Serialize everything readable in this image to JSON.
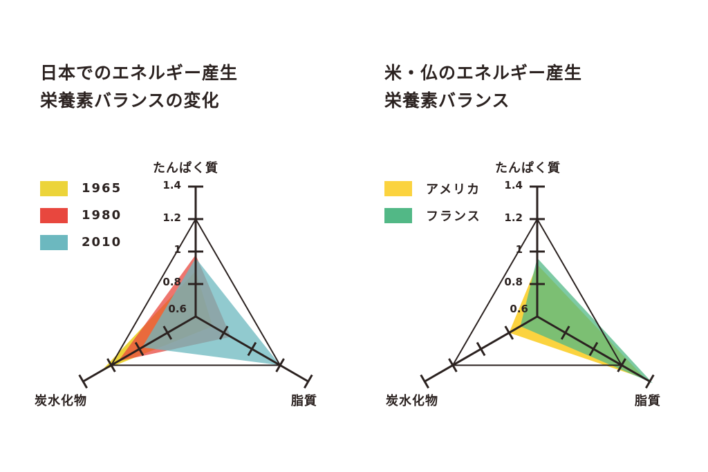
{
  "chart_data": [
    {
      "type": "radar",
      "title": "日本でのエネルギー産生栄養素バランスの変化",
      "title_lines": [
        "日本でのエネルギー産生",
        "栄養素バランスの変化"
      ],
      "axes": [
        "たんぱく質",
        "脂質",
        "炭水化物"
      ],
      "tick_labels": [
        "1.4",
        "1.2",
        "1",
        "0.8",
        "0.6"
      ],
      "rlim": [
        0.6,
        1.4
      ],
      "reference_triangle_value": 1.2,
      "legend_position": "left",
      "series": [
        {
          "name": "1965",
          "color": "#ecd43a",
          "values": {
            "protein": 0.88,
            "fat": 0.72,
            "carb": 1.27
          }
        },
        {
          "name": "1980",
          "color": "#e8473e",
          "values": {
            "protein": 0.98,
            "fat": 0.85,
            "carb": 1.15
          }
        },
        {
          "name": "2010",
          "color": "#6cb8bf",
          "values": {
            "protein": 0.96,
            "fat": 1.2,
            "carb": 0.98
          }
        }
      ]
    },
    {
      "type": "radar",
      "title": "米・仏のエネルギー産生栄養素バランス",
      "title_lines": [
        "米・仏のエネルギー産生",
        "栄養素バランス"
      ],
      "axes": [
        "たんぱく質",
        "脂質",
        "炭水化物"
      ],
      "tick_labels": [
        "1.4",
        "1.2",
        "1",
        "0.8",
        "0.6"
      ],
      "rlim": [
        0.6,
        1.4
      ],
      "reference_triangle_value": 1.2,
      "legend_position": "left",
      "series": [
        {
          "name": "アメリカ",
          "color": "#fbd33f",
          "values": {
            "protein": 0.92,
            "fat": 1.37,
            "carb": 0.8
          }
        },
        {
          "name": "フランス",
          "color": "#52b886",
          "values": {
            "protein": 0.96,
            "fat": 1.42,
            "carb": 0.72
          }
        }
      ]
    }
  ],
  "left": {
    "title_line1": "日本でのエネルギー産生",
    "title_line2": "栄養素バランスの変化",
    "legend": [
      {
        "label": "1965",
        "color": "#ecd43a"
      },
      {
        "label": "1980",
        "color": "#e8473e"
      },
      {
        "label": "2010",
        "color": "#6cb8bf"
      }
    ],
    "axis_protein": "たんぱく質",
    "axis_carb": "炭水化物",
    "axis_fat": "脂質",
    "ticks": [
      "1.4",
      "1.2",
      "1",
      "0.8",
      "0.6"
    ]
  },
  "right": {
    "title_line1": "米・仏のエネルギー産生",
    "title_line2": "栄養素バランス",
    "legend": [
      {
        "label": "アメリカ",
        "color": "#fbd33f"
      },
      {
        "label": "フランス",
        "color": "#52b886"
      }
    ],
    "axis_protein": "たんぱく質",
    "axis_carb": "炭水化物",
    "axis_fat": "脂質",
    "ticks": [
      "1.4",
      "1.2",
      "1",
      "0.8",
      "0.6"
    ]
  },
  "colors": {
    "ink": "#2b2220",
    "overlap_japan_1965_1980": "#a88574",
    "overlap_japan_2010": "#a394c9",
    "overlap_us_fr": "#b89c6c"
  }
}
